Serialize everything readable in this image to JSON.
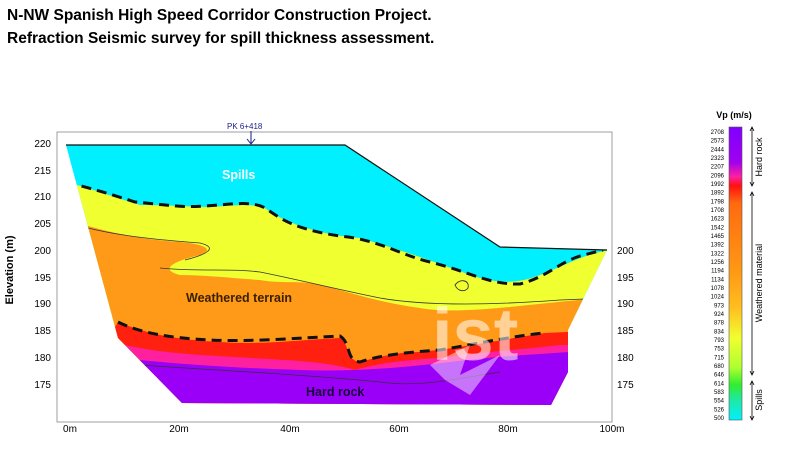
{
  "title_line1": "N-NW Spanish High Speed Corridor Construction Project.",
  "title_line2": "Refraction Seismic survey for spill thickness assessment.",
  "section": {
    "ylabel": "Elevation (m)",
    "y_ticks": [
      "220",
      "215",
      "210",
      "205",
      "200",
      "195",
      "190",
      "185",
      "180",
      "175"
    ],
    "right_ticks": [
      "200",
      "195",
      "190",
      "185",
      "180",
      "175"
    ],
    "x_ticks": [
      "0m",
      "20m",
      "40m",
      "60m",
      "80m",
      "100m"
    ],
    "pk_label": "PK 6+418",
    "layers": {
      "spills": "Spills",
      "weathered": "Weathered terrain",
      "hard_rock": "Hard rock"
    },
    "watermark": "ist"
  },
  "legend": {
    "title": "Vp (m/s)",
    "values": [
      "2708",
      "2573",
      "2444",
      "2323",
      "2207",
      "2096",
      "1992",
      "1892",
      "1798",
      "1708",
      "1623",
      "1542",
      "1465",
      "1392",
      "1322",
      "1256",
      "1194",
      "1134",
      "1078",
      "1024",
      "973",
      "924",
      "878",
      "834",
      "793",
      "753",
      "715",
      "680",
      "646",
      "614",
      "583",
      "554",
      "526",
      "500"
    ],
    "colors": {
      "top": "#7f00ff",
      "upper": "#ff20a0",
      "red": "#ff1010",
      "orange": "#ff8a10",
      "yellow": "#f0ff30",
      "green": "#30ee30",
      "bottom": "#00f0ff"
    },
    "zones": {
      "hard_rock": "Hard rock",
      "weathered": "Weathered material",
      "spills": "Spills"
    }
  }
}
